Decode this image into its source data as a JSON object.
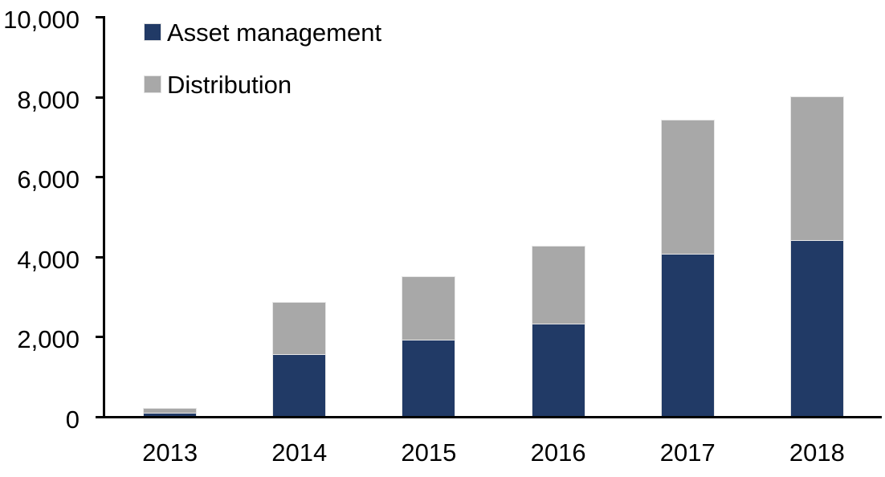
{
  "chart_data": {
    "type": "bar",
    "stacked": true,
    "title": "",
    "xlabel": "",
    "ylabel": "",
    "categories": [
      "2013",
      "2014",
      "2015",
      "2016",
      "2017",
      "2018"
    ],
    "series": [
      {
        "name": "Asset management",
        "color": "#213a66",
        "values": [
          80,
          1550,
          1900,
          2300,
          4050,
          4400
        ]
      },
      {
        "name": "Distribution",
        "color": "#a8a8a8",
        "values": [
          120,
          1300,
          1600,
          1950,
          3350,
          3600
        ]
      }
    ],
    "ylim": [
      0,
      10000
    ],
    "yticks": [
      {
        "value": 0,
        "label": "0"
      },
      {
        "value": 2000,
        "label": "2,000"
      },
      {
        "value": 4000,
        "label": "4,000"
      },
      {
        "value": 6000,
        "label": "6,000"
      },
      {
        "value": 8000,
        "label": "8,000"
      },
      {
        "value": 10000,
        "label": "10,000"
      }
    ],
    "grid": false,
    "legend_position": "top-left",
    "axis_color": "#000000",
    "background_color": "#ffffff",
    "bar_border_color": "#e7e7e7"
  }
}
